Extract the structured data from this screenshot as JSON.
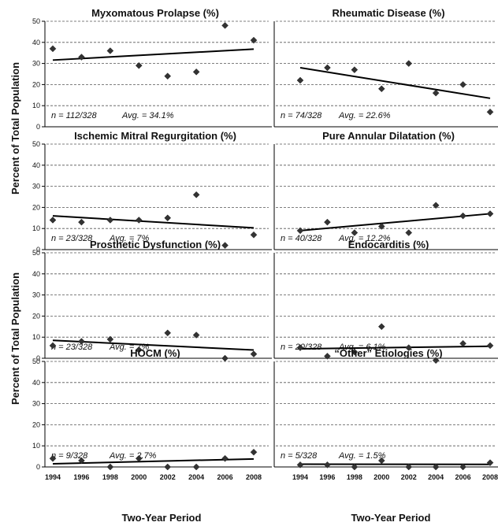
{
  "figure": {
    "ylabel": "Percent of Total Population",
    "xlabel": "Two-Year Period"
  },
  "chart_data": [
    {
      "type": "scatter",
      "title": "Myxomatous Prolapse (%)",
      "annotation": {
        "n": "n = 112/328",
        "avg": "Avg. = 34.1%"
      },
      "x": [
        1994,
        1996,
        1998,
        2000,
        2002,
        2004,
        2006,
        2008
      ],
      "values": [
        37,
        33,
        36,
        29,
        24,
        26,
        48,
        41
      ],
      "trendline": {
        "x": [
          1994,
          2008
        ],
        "y": [
          31.6,
          36.8
        ]
      },
      "ylim": [
        0,
        50
      ],
      "yticks": [
        0,
        10,
        20,
        30,
        40,
        50
      ],
      "xlim": [
        1994,
        2008
      ],
      "grid": "dashed-horizontal"
    },
    {
      "type": "scatter",
      "title": "Rheumatic Disease (%)",
      "annotation": {
        "n": "n = 74/328",
        "avg": "Avg. = 22.6%"
      },
      "x": [
        1994,
        1996,
        1998,
        2000,
        2002,
        2004,
        2006,
        2008
      ],
      "values": [
        22,
        28,
        27,
        18,
        30,
        16,
        20,
        7
      ],
      "trendline": {
        "x": [
          1994,
          2008
        ],
        "y": [
          28,
          13.5
        ]
      },
      "ylim": [
        0,
        50
      ],
      "yticks": [
        0,
        10,
        20,
        30,
        40,
        50
      ],
      "xlim": [
        1994,
        2008
      ],
      "grid": "dashed-horizontal"
    },
    {
      "type": "scatter",
      "title": "Ischemic Mitral Regurgitation (%)",
      "annotation": {
        "n": "n = 23/328",
        "avg": "Avg. = 7%"
      },
      "x": [
        1994,
        1996,
        1998,
        2000,
        2002,
        2004,
        2006,
        2008
      ],
      "values": [
        14,
        13,
        14,
        14,
        15,
        26,
        2,
        7
      ],
      "trendline": {
        "x": [
          1994,
          2008
        ],
        "y": [
          16,
          10.3
        ]
      },
      "ylim": [
        0,
        50
      ],
      "yticks": [
        0,
        10,
        20,
        30,
        40,
        50
      ],
      "xlim": [
        1994,
        2008
      ],
      "grid": "dashed-horizontal"
    },
    {
      "type": "scatter",
      "title": "Pure Annular Dilatation (%)",
      "annotation": {
        "n": "n = 40/328",
        "avg": "Avg. = 12.2%"
      },
      "x": [
        1994,
        1996,
        1998,
        2000,
        2002,
        2004,
        2006,
        2008
      ],
      "values": [
        9,
        13,
        8,
        11,
        8,
        21,
        16,
        17
      ],
      "trendline": {
        "x": [
          1994,
          2008
        ],
        "y": [
          9,
          17
        ]
      },
      "ylim": [
        0,
        50
      ],
      "yticks": [
        0,
        10,
        20,
        30,
        40,
        50
      ],
      "xlim": [
        1994,
        2008
      ],
      "grid": "dashed-horizontal"
    },
    {
      "type": "scatter",
      "title": "Prosthetic Dysfunction (%)",
      "annotation": {
        "n": "n = 23/328",
        "avg": "Avg. = 7%"
      },
      "x": [
        1994,
        1996,
        1998,
        2000,
        2002,
        2004,
        2006,
        2008
      ],
      "values": [
        6,
        8,
        9,
        4,
        12,
        11,
        0,
        2
      ],
      "trendline": {
        "x": [
          1994,
          2008
        ],
        "y": [
          8.5,
          3.9
        ]
      },
      "ylim": [
        0,
        50
      ],
      "yticks": [
        0,
        10,
        20,
        30,
        40,
        50
      ],
      "xlim": [
        1994,
        2008
      ],
      "grid": "dashed-horizontal"
    },
    {
      "type": "scatter",
      "title": "Endocarditis (%)",
      "annotation": {
        "n": "n = 20/328",
        "avg": "Avg. = 6.1%"
      },
      "x": [
        1994,
        1996,
        1998,
        2000,
        2002,
        2004,
        2006,
        2008
      ],
      "values": [
        5,
        1,
        3,
        15,
        5,
        -1,
        7,
        6
      ],
      "trendline": {
        "x": [
          1994,
          2008
        ],
        "y": [
          4.5,
          5.7
        ]
      },
      "ylim": [
        0,
        50
      ],
      "yticks": [
        0,
        10,
        20,
        30,
        40,
        50
      ],
      "xlim": [
        1994,
        2008
      ],
      "grid": "dashed-horizontal"
    },
    {
      "type": "scatter",
      "title": "HOCM (%)",
      "annotation": {
        "n": "n = 9/328",
        "avg": "Avg. = 2.7%"
      },
      "x": [
        1994,
        1996,
        1998,
        2000,
        2002,
        2004,
        2006,
        2008
      ],
      "values": [
        4,
        3,
        0,
        4,
        0,
        0,
        4,
        7
      ],
      "trendline": {
        "x": [
          1994,
          2008
        ],
        "y": [
          1.5,
          3.8
        ]
      },
      "ylim": [
        0,
        50
      ],
      "yticks": [
        0,
        10,
        20,
        30,
        40,
        50
      ],
      "xlim": [
        1994,
        2008
      ],
      "grid": "dashed-horizontal"
    },
    {
      "type": "scatter",
      "title": "“Other” Etiologies (%)",
      "annotation": {
        "n": "n = 5/328",
        "avg": "Avg. = 1.5%"
      },
      "x": [
        1994,
        1996,
        1998,
        2000,
        2002,
        2004,
        2006,
        2008
      ],
      "values": [
        1,
        1,
        0,
        3,
        0,
        0,
        0,
        2
      ],
      "trendline": {
        "x": [
          1994,
          2008
        ],
        "y": [
          1.3,
          1.2
        ]
      },
      "ylim": [
        0,
        50
      ],
      "yticks": [
        0,
        10,
        20,
        30,
        40,
        50
      ],
      "xlim": [
        1994,
        2008
      ],
      "grid": "dashed-horizontal"
    }
  ]
}
